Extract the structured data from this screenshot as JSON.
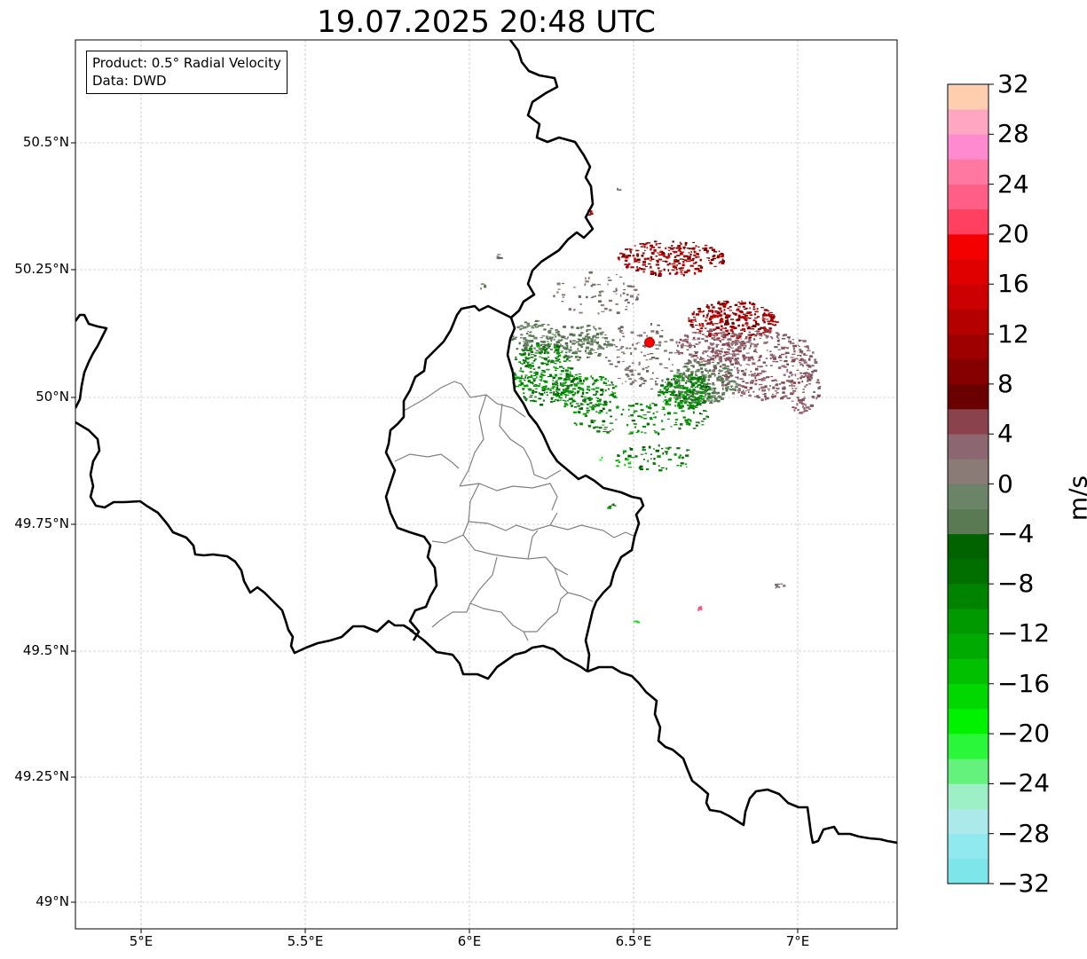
{
  "title": "19.07.2025 20:48 UTC",
  "info_box": {
    "product": "Product: 0.5° Radial Velocity",
    "source": "Data: DWD"
  },
  "map": {
    "x_ticks": [
      "5°E",
      "5.5°E",
      "6°E",
      "6.5°E",
      "7°E"
    ],
    "y_ticks": [
      "50.5°N",
      "50.25°N",
      "50°N",
      "49.75°N",
      "49.5°N",
      "49.25°N",
      "49°N"
    ],
    "radar_site_color": "#ff0000",
    "border_color": "#000000",
    "district_color": "#808080"
  },
  "colorbar": {
    "label": "m/s",
    "ticks": [
      "32",
      "28",
      "24",
      "20",
      "16",
      "12",
      "8",
      "4",
      "0",
      "−4",
      "−8",
      "−12",
      "−16",
      "−20",
      "−24",
      "−28",
      "−32"
    ],
    "colors_bottom_to_top": [
      "#7ce6ea",
      "#8fe9ee",
      "#ace9ea",
      "#9df0c6",
      "#65f27c",
      "#2bf73a",
      "#00f200",
      "#00d800",
      "#00c000",
      "#00aa00",
      "#009900",
      "#008400",
      "#006f00",
      "#006300",
      "#5a7a54",
      "#6b8468",
      "#8a7b77",
      "#8c6670",
      "#8a434d",
      "#6b0000",
      "#850000",
      "#9e0000",
      "#b50000",
      "#cc0000",
      "#e10000",
      "#f40000",
      "#ff4060",
      "#ff5f86",
      "#ff78a2",
      "#ff8ad0",
      "#ffa6c2",
      "#ffcdb0"
    ]
  }
}
